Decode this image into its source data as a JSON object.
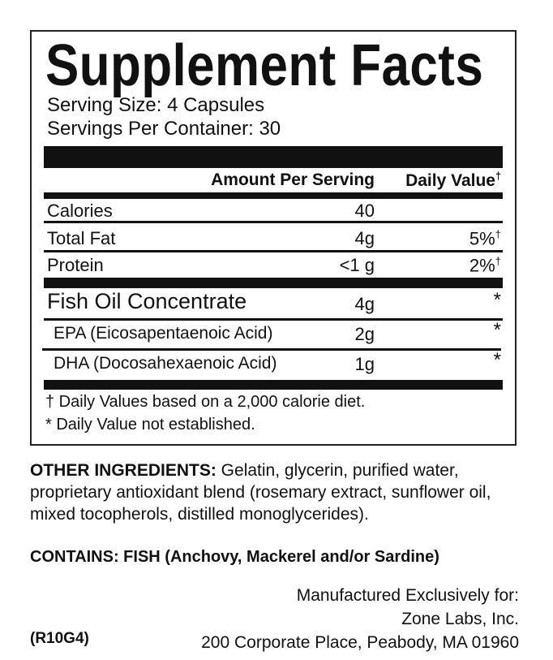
{
  "label": {
    "title": "Supplement Facts",
    "serving_size": "Serving Size: 4 Capsules",
    "servings_per_container": "Servings Per Container: 30",
    "header": {
      "amount": "Amount Per Serving",
      "daily_value": "Daily Value",
      "dagger": "†"
    },
    "rows": [
      {
        "name": "Calories",
        "amount": "40",
        "dv": ""
      },
      {
        "name": "Total Fat",
        "amount": "4g",
        "dv": "5%",
        "dv_mark": "†"
      },
      {
        "name": "Protein",
        "amount": "<1 g",
        "dv": "2%",
        "dv_mark": "†"
      },
      {
        "name": "Fish Oil Concentrate",
        "amount": "4g",
        "dv": "*"
      },
      {
        "name": "EPA (Eicosapentaenoic Acid)",
        "amount": "2g",
        "dv": "*"
      },
      {
        "name": "DHA (Docosahexaenoic Acid)",
        "amount": "1g",
        "dv": "*"
      }
    ],
    "footnotes": [
      "† Daily Values based on a 2,000 calorie diet.",
      "* Daily Value not established."
    ]
  },
  "other_ingredients": {
    "heading": "OTHER INGREDIENTS:",
    "text": " Gelatin, glycerin, purified water, proprietary antioxidant blend (rosemary extract, sunflower oil, mixed tocopherols, distilled monoglycerides)."
  },
  "contains": "CONTAINS: FISH (Anchovy, Mackerel and/or Sardine)",
  "manufacturer": {
    "line1": "Manufactured Exclusively for:",
    "line2": "Zone Labs, Inc.",
    "line3": "200 Corporate Place, Peabody, MA 01960"
  },
  "code": "(R10G4)"
}
